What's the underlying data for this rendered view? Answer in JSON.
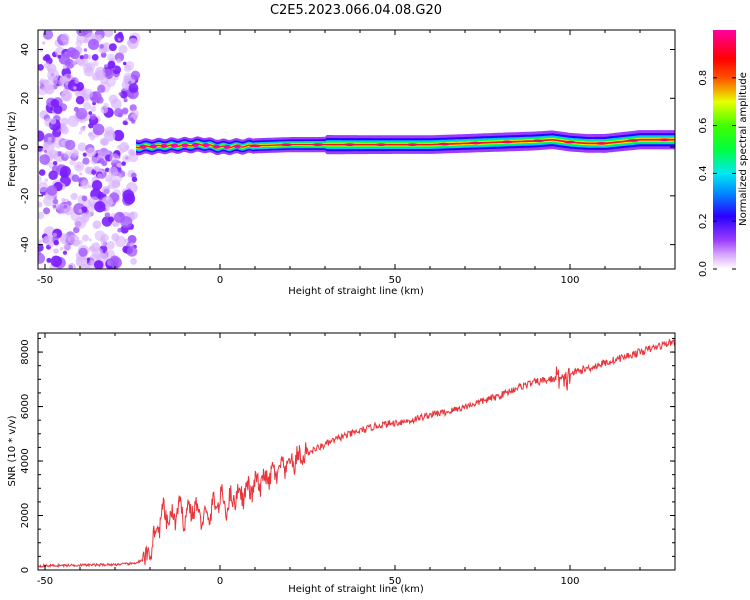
{
  "figure_title": "C2E5.2023.066.04.08.G20",
  "colors": {
    "trace": "#e8343a",
    "noise": "#9b3dff",
    "frame": "#000000"
  },
  "chart_data": [
    {
      "type": "heatmap",
      "title": "C2E5.2023.066.04.08.G20",
      "xlabel": "Height of straight line (km)",
      "ylabel": "Frequency (Hz)",
      "xlim": [
        -52,
        130
      ],
      "ylim": [
        -50,
        48
      ],
      "x_ticks": [
        -50,
        0,
        50,
        100
      ],
      "y_ticks": [
        -40,
        -20,
        0,
        20,
        40
      ],
      "colorbar": {
        "label": "Normalized spectral amplitude",
        "range": [
          0,
          1
        ],
        "ticks": [
          "0.0",
          "0.2",
          "0.4",
          "0.6",
          "0.8"
        ],
        "colormap": [
          "#ffffff",
          "#c060ff",
          "#2a00ff",
          "#00e0ff",
          "#00ff00",
          "#ffff00",
          "#ff0000",
          "#ff00a0"
        ]
      },
      "noise_region_x": [
        -52,
        -24
      ],
      "signal_track": {
        "x": [
          -24,
          -15,
          -5,
          0,
          10,
          20,
          30,
          40,
          50,
          60,
          70,
          80,
          90,
          95,
          100,
          105,
          110,
          120,
          130
        ],
        "frequency": [
          0,
          0.5,
          1,
          0,
          0.5,
          1,
          1,
          1,
          1,
          1,
          1.5,
          2,
          2.5,
          3,
          2,
          1.5,
          1.5,
          3,
          3
        ],
        "amplitude": [
          0.95,
          0.9,
          0.9,
          0.9,
          0.9,
          0.9,
          0.95,
          0.9,
          0.85,
          0.85,
          0.85,
          0.9,
          0.9,
          0.85,
          0.85,
          0.85,
          0.9,
          0.95,
          0.95
        ]
      }
    },
    {
      "type": "line",
      "xlabel": "Height of straight line (km)",
      "ylabel": "SNR (10 * v/v)",
      "xlim": [
        -52,
        130
      ],
      "ylim": [
        0,
        8700
      ],
      "x_ticks": [
        -50,
        0,
        50,
        100
      ],
      "y_ticks": [
        0,
        2000,
        4000,
        6000,
        8000
      ],
      "series": [
        {
          "x": [
            -52,
            -40,
            -30,
            -25,
            -22,
            -20,
            -18,
            -16,
            -14,
            -12,
            -10,
            -8,
            -6,
            -4,
            -2,
            0,
            2,
            5,
            8,
            10,
            15,
            20,
            25,
            30,
            35,
            40,
            45,
            50,
            55,
            60,
            65,
            70,
            75,
            80,
            85,
            90,
            95,
            97,
            98,
            99,
            100,
            105,
            110,
            115,
            120,
            125,
            130
          ],
          "y": [
            150,
            180,
            200,
            230,
            350,
            700,
            1500,
            2100,
            1800,
            2200,
            2000,
            2300,
            2100,
            1800,
            2300,
            2600,
            2400,
            2800,
            2900,
            3100,
            3500,
            3900,
            4300,
            4600,
            4900,
            5100,
            5300,
            5400,
            5500,
            5700,
            5800,
            6000,
            6200,
            6400,
            6700,
            6900,
            7000,
            7100,
            6800,
            6900,
            7200,
            7400,
            7600,
            7800,
            8000,
            8200,
            8400
          ]
        }
      ]
    }
  ]
}
